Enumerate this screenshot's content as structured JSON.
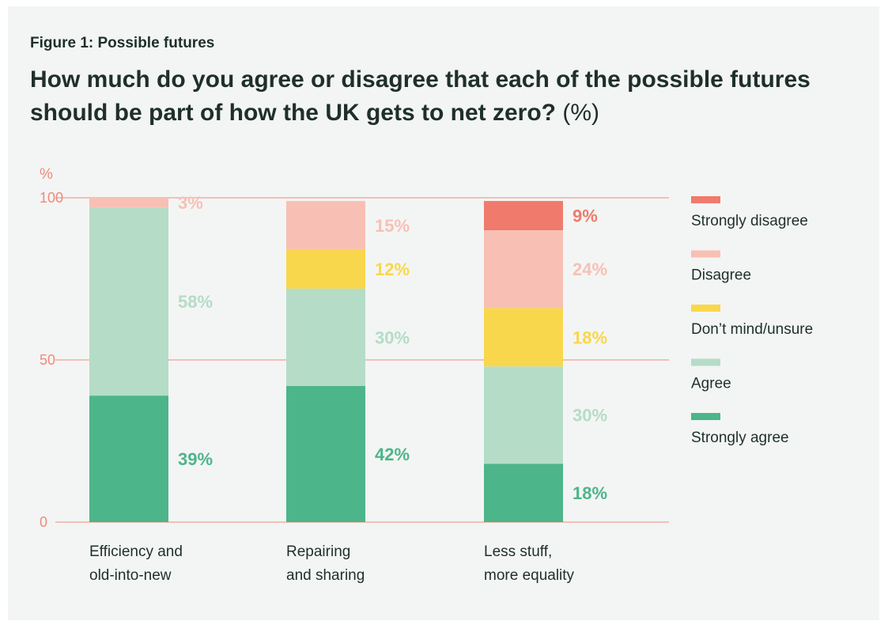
{
  "figure_label": "Figure 1: Possible futures",
  "title": "How much do you agree or disagree that each of the possible futures should be part of how the UK gets to net zero?",
  "title_unit": "(%)",
  "colors": {
    "axis": "#f08a7c",
    "text": "#1f2f2b",
    "strongly_disagree": "#f07a6b",
    "disagree": "#f8c0b4",
    "dont_mind": "#f9d74c",
    "agree": "#b5dcc7",
    "strongly_agree": "#4db58a"
  },
  "chart_data": {
    "type": "bar",
    "stacked": true,
    "ylabel": "%",
    "ylim": [
      0,
      100
    ],
    "yticks": [
      0,
      50,
      100
    ],
    "grid": true,
    "legend_position": "right",
    "categories": [
      "Efficiency and old-into-new",
      "Repairing and sharing",
      "Less stuff, more equality"
    ],
    "category_lines": [
      [
        "Efficiency and",
        "old-into-new"
      ],
      [
        "Repairing",
        "and sharing"
      ],
      [
        "Less stuff,",
        "more equality"
      ]
    ],
    "series": [
      {
        "name": "Strongly agree",
        "key": "strongly_agree",
        "values": [
          39,
          42,
          18
        ],
        "labels": [
          "39%",
          "42%",
          "18%"
        ]
      },
      {
        "name": "Agree",
        "key": "agree",
        "values": [
          58,
          30,
          30
        ],
        "labels": [
          "58%",
          "30%",
          "30%"
        ]
      },
      {
        "name": "Don’t mind/unsure",
        "key": "dont_mind",
        "values": [
          0,
          12,
          18
        ],
        "labels": [
          "",
          "12%",
          "18%"
        ]
      },
      {
        "name": "Disagree",
        "key": "disagree",
        "values": [
          3,
          15,
          24
        ],
        "labels": [
          "3%",
          "15%",
          "24%"
        ]
      },
      {
        "name": "Strongly disagree",
        "key": "strongly_disagree",
        "values": [
          0,
          0,
          9
        ],
        "labels": [
          "",
          "",
          "9%"
        ]
      }
    ],
    "legend_order": [
      "strongly_disagree",
      "disagree",
      "dont_mind",
      "agree",
      "strongly_agree"
    ]
  }
}
